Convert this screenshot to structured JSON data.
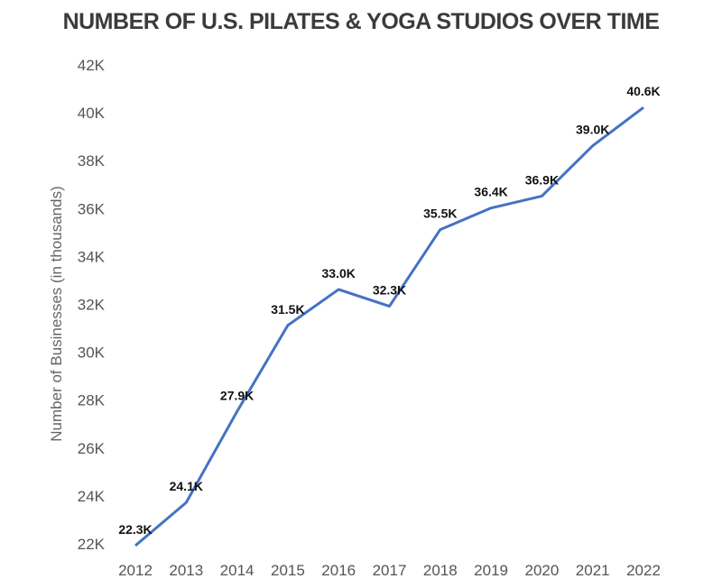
{
  "chart_data": {
    "type": "line",
    "title": "NUMBER OF U.S. PILATES & YOGA STUDIOS OVER TIME",
    "xlabel": "",
    "ylabel": "Number of Businesses (in thousands)",
    "categories": [
      "2012",
      "2013",
      "2014",
      "2015",
      "2016",
      "2017",
      "2018",
      "2019",
      "2020",
      "2021",
      "2022"
    ],
    "values": [
      22.3,
      24.1,
      27.9,
      31.5,
      33.0,
      32.3,
      35.5,
      36.4,
      36.9,
      39.0,
      40.6
    ],
    "data_labels": [
      "22.3K",
      "24.1K",
      "27.9K",
      "31.5K",
      "33.0K",
      "32.3K",
      "35.5K",
      "36.4K",
      "36.9K",
      "39.0K",
      "40.6K"
    ],
    "yticks": [
      "22K",
      "24K",
      "26K",
      "28K",
      "30K",
      "32K",
      "34K",
      "36K",
      "38K",
      "40K",
      "42K"
    ],
    "ylim": [
      22,
      42
    ],
    "grid": false,
    "line_color": "#4472c4"
  }
}
